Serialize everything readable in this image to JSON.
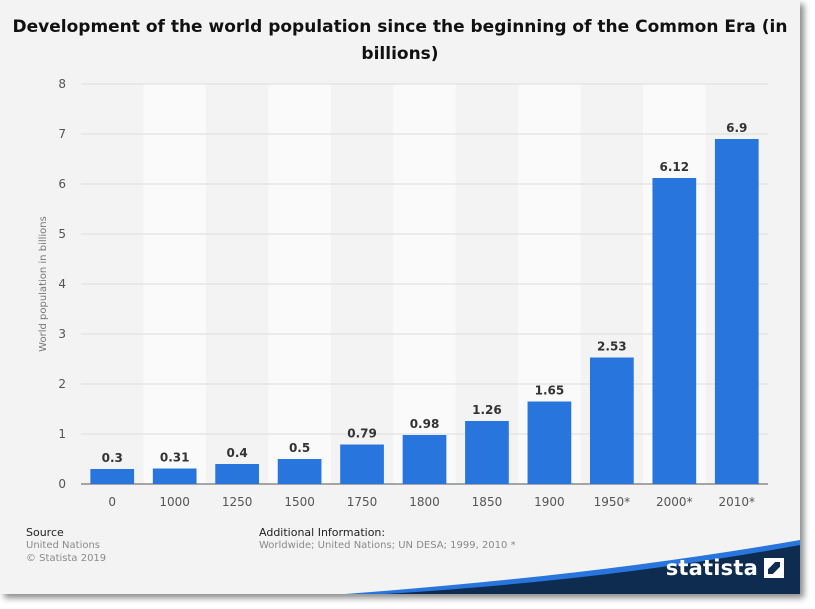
{
  "chart_data": {
    "type": "bar",
    "title": "Development of the world population since the beginning of the Common Era (in billions)",
    "categories": [
      "0",
      "1000",
      "1250",
      "1500",
      "1750",
      "1800",
      "1850",
      "1900",
      "1950*",
      "2000*",
      "2010*"
    ],
    "values": [
      0.3,
      0.31,
      0.4,
      0.5,
      0.79,
      0.98,
      1.26,
      1.65,
      2.53,
      6.12,
      6.9
    ],
    "value_labels": [
      "0.3",
      "0.31",
      "0.4",
      "0.5",
      "0.79",
      "0.98",
      "1.26",
      "1.65",
      "2.53",
      "6.12",
      "6.9"
    ],
    "xlabel": "",
    "ylabel": "World population in billions",
    "ylim": [
      0,
      8
    ],
    "yticks": [
      "0",
      "1",
      "2",
      "3",
      "4",
      "5",
      "6",
      "7",
      "8"
    ],
    "bar_color": "#2876dd",
    "grid": true
  },
  "footer": {
    "source_label": "Source",
    "source_lines": [
      "United Nations",
      "© Statista 2019"
    ],
    "additional_label": "Additional Information:",
    "additional_text": "Worldwide; United Nations; UN DESA; 1999, 2010 *"
  },
  "brand": {
    "name": "statista",
    "color": "#0d2c4f",
    "accent": "#2876dd"
  }
}
